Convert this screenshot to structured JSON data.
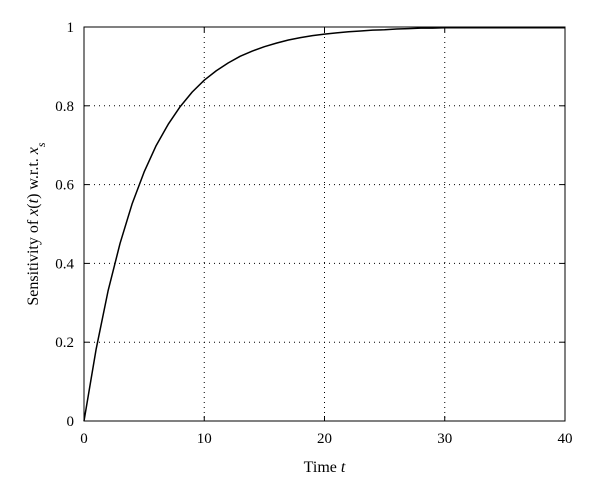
{
  "chart_data": {
    "type": "line",
    "xlabel": {
      "text": "Time ",
      "var": "t"
    },
    "ylabel": {
      "pre": "Sensitivity of ",
      "func": "x",
      "open": "(",
      "arg": "t",
      "close": ")",
      "mid": " w.r.t. ",
      "base": "x",
      "sub": "s"
    },
    "xlim": [
      0,
      40
    ],
    "ylim": [
      0,
      1
    ],
    "xticks": [
      0,
      10,
      20,
      30,
      40
    ],
    "xtick_labels": [
      "0",
      "10",
      "20",
      "30",
      "40"
    ],
    "yticks": [
      0,
      0.2,
      0.4,
      0.6,
      0.8,
      1
    ],
    "ytick_labels": [
      "0",
      "0.2",
      "0.4",
      "0.6",
      "0.8",
      "1"
    ],
    "grid": "dotted",
    "series": [
      {
        "color": "#000000",
        "x": [
          0,
          1,
          2,
          3,
          4,
          5,
          6,
          7,
          8,
          9,
          10,
          11,
          12,
          13,
          14,
          15,
          16,
          17,
          18,
          19,
          20,
          21,
          22,
          23,
          24,
          25,
          26,
          27,
          28,
          29,
          30
        ],
        "y": [
          0,
          0.181,
          0.33,
          0.451,
          0.551,
          0.632,
          0.699,
          0.753,
          0.798,
          0.835,
          0.865,
          0.889,
          0.909,
          0.926,
          0.939,
          0.95,
          0.959,
          0.967,
          0.973,
          0.978,
          0.982,
          0.985,
          0.988,
          0.99,
          0.992,
          0.993,
          0.995,
          0.996,
          0.997,
          0.997,
          0.998
        ]
      }
    ]
  }
}
